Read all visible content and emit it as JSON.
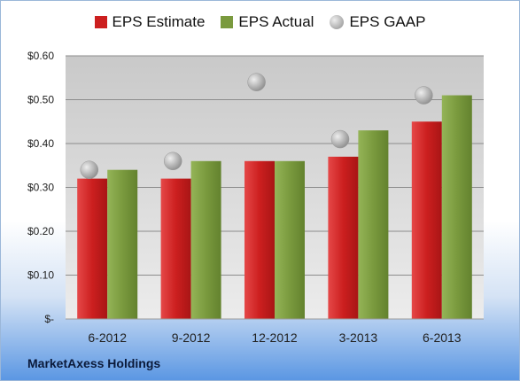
{
  "chart_data": {
    "type": "bar",
    "categories": [
      "6-2012",
      "9-2012",
      "12-2012",
      "3-2013",
      "6-2013"
    ],
    "series": [
      {
        "name": "EPS Estimate",
        "type": "bar",
        "color": "#cc1f1f",
        "values": [
          0.32,
          0.32,
          0.36,
          0.37,
          0.45
        ]
      },
      {
        "name": "EPS Actual",
        "type": "bar",
        "color": "#7a9a3e",
        "values": [
          0.34,
          0.36,
          0.36,
          0.43,
          0.51
        ]
      },
      {
        "name": "EPS GAAP",
        "type": "scatter",
        "color": "#b3b3b3",
        "values": [
          0.34,
          0.36,
          0.54,
          0.41,
          0.51
        ]
      }
    ],
    "yticks": [
      0,
      0.1,
      0.2,
      0.3,
      0.4,
      0.5,
      0.6
    ],
    "ytick_labels": [
      "$-",
      "$0.10",
      "$0.20",
      "$0.30",
      "$0.40",
      "$0.50",
      "$0.60"
    ],
    "ylim": [
      0,
      0.6
    ],
    "grid": true,
    "legend_position": "top",
    "plot_background": "#c8c8c8"
  },
  "footer": {
    "company": "MarketAxess Holdings"
  }
}
